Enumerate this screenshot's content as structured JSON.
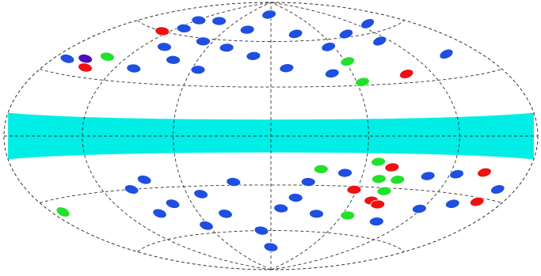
{
  "map": {
    "projection": "hammer-aitoff",
    "graticule": {
      "longitude_step_deg": 60,
      "latitude_step_deg": 30,
      "line_style": "dashed"
    },
    "band": {
      "color": "#00eee6",
      "lat_min_deg": -10,
      "lat_max_deg": 10,
      "label": ""
    },
    "colors": {
      "blue": "#1f4fe0",
      "green": "#22e12a",
      "red": "#ee1111",
      "violet": "#4a10b8",
      "outline": "#ffffff",
      "grid": "#333333",
      "background": "#ffffff"
    },
    "sources": [
      {
        "lon": -170,
        "lat": -36,
        "color": "green"
      },
      {
        "lon": -168,
        "lat": 37,
        "color": "blue"
      },
      {
        "lon": -153,
        "lat": 39,
        "color": "violet"
      },
      {
        "lon": -144,
        "lat": 35,
        "color": "red"
      },
      {
        "lon": -137,
        "lat": 42,
        "color": "green"
      },
      {
        "lon": -128,
        "lat": 60,
        "color": "red"
      },
      {
        "lon": -118,
        "lat": 70,
        "color": "blue"
      },
      {
        "lon": -112,
        "lat": 64,
        "color": "blue"
      },
      {
        "lon": -105,
        "lat": 38,
        "color": "blue"
      },
      {
        "lon": -100,
        "lat": 52,
        "color": "blue"
      },
      {
        "lon": -98,
        "lat": -30,
        "color": "blue"
      },
      {
        "lon": -92,
        "lat": -45,
        "color": "blue"
      },
      {
        "lon": -88,
        "lat": 72,
        "color": "blue"
      },
      {
        "lon": -85,
        "lat": -25,
        "color": "blue"
      },
      {
        "lon": -80,
        "lat": 45,
        "color": "blue"
      },
      {
        "lon": -75,
        "lat": -40,
        "color": "blue"
      },
      {
        "lon": -70,
        "lat": 58,
        "color": "blue"
      },
      {
        "lon": -62,
        "lat": -55,
        "color": "blue"
      },
      {
        "lon": -55,
        "lat": 40,
        "color": "blue"
      },
      {
        "lon": -50,
        "lat": -35,
        "color": "blue"
      },
      {
        "lon": -42,
        "lat": 55,
        "color": "blue"
      },
      {
        "lon": -38,
        "lat": -48,
        "color": "blue"
      },
      {
        "lon": -32,
        "lat": 68,
        "color": "blue"
      },
      {
        "lon": -25,
        "lat": -28,
        "color": "blue"
      },
      {
        "lon": -15,
        "lat": 50,
        "color": "blue"
      },
      {
        "lon": -10,
        "lat": -60,
        "color": "blue"
      },
      {
        "lon": -5,
        "lat": 80,
        "color": "blue"
      },
      {
        "lon": 0,
        "lat": -72,
        "color": "blue"
      },
      {
        "lon": 8,
        "lat": -45,
        "color": "blue"
      },
      {
        "lon": 12,
        "lat": 42,
        "color": "blue"
      },
      {
        "lon": 18,
        "lat": -38,
        "color": "blue"
      },
      {
        "lon": 25,
        "lat": -28,
        "color": "blue"
      },
      {
        "lon": 30,
        "lat": 65,
        "color": "blue"
      },
      {
        "lon": 32,
        "lat": -20,
        "color": "green"
      },
      {
        "lon": 38,
        "lat": -48,
        "color": "blue"
      },
      {
        "lon": 45,
        "lat": 38,
        "color": "blue"
      },
      {
        "lon": 48,
        "lat": -22,
        "color": "blue"
      },
      {
        "lon": 55,
        "lat": 55,
        "color": "blue"
      },
      {
        "lon": 58,
        "lat": -32,
        "color": "red"
      },
      {
        "lon": 62,
        "lat": 45,
        "color": "green"
      },
      {
        "lon": 64,
        "lat": 32,
        "color": "green"
      },
      {
        "lon": 65,
        "lat": -48,
        "color": "green"
      },
      {
        "lon": 68,
        "lat": -15,
        "color": "green"
      },
      {
        "lon": 72,
        "lat": -25,
        "color": "green"
      },
      {
        "lon": 75,
        "lat": -38,
        "color": "red"
      },
      {
        "lon": 78,
        "lat": -18,
        "color": "red"
      },
      {
        "lon": 80,
        "lat": -32,
        "color": "green"
      },
      {
        "lon": 82,
        "lat": -40,
        "color": "red"
      },
      {
        "lon": 85,
        "lat": -25,
        "color": "green"
      },
      {
        "lon": 88,
        "lat": 62,
        "color": "blue"
      },
      {
        "lon": 95,
        "lat": -50,
        "color": "blue"
      },
      {
        "lon": 100,
        "lat": 35,
        "color": "red"
      },
      {
        "lon": 105,
        "lat": -22,
        "color": "blue"
      },
      {
        "lon": 110,
        "lat": 55,
        "color": "blue"
      },
      {
        "lon": 118,
        "lat": -40,
        "color": "blue"
      },
      {
        "lon": 125,
        "lat": -20,
        "color": "blue"
      },
      {
        "lon": 135,
        "lat": 65,
        "color": "blue"
      },
      {
        "lon": 140,
        "lat": -35,
        "color": "blue"
      },
      {
        "lon": 145,
        "lat": -18,
        "color": "red"
      },
      {
        "lon": 150,
        "lat": 42,
        "color": "blue"
      },
      {
        "lon": 158,
        "lat": -32,
        "color": "red"
      },
      {
        "lon": 165,
        "lat": -25,
        "color": "blue"
      }
    ]
  }
}
